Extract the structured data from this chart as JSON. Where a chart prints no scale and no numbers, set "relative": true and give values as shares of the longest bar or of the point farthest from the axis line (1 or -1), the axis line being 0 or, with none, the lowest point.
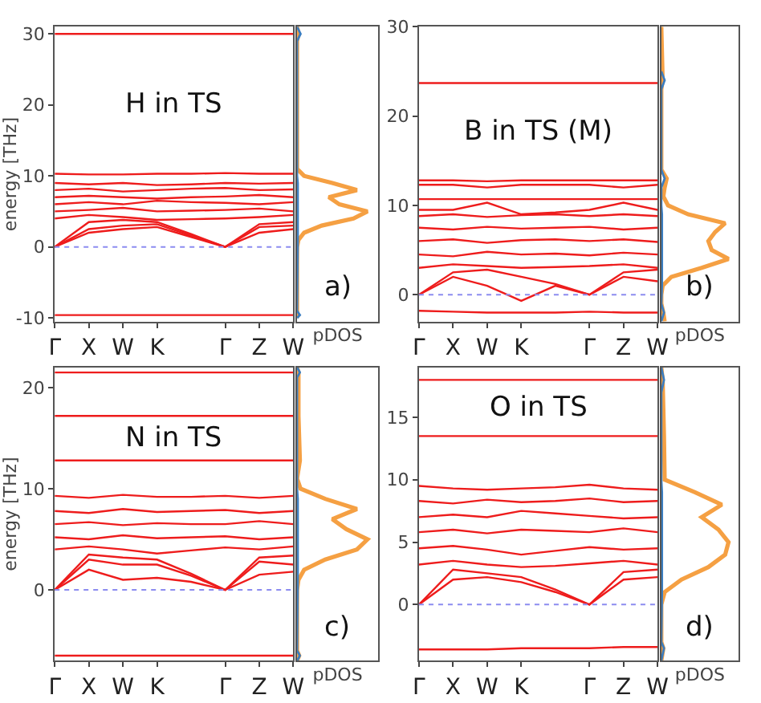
{
  "chart_data": [
    {
      "type": "line",
      "categories": [
        "Γ",
        "X",
        "W",
        "K",
        null,
        "Γ",
        "Z",
        "W"
      ],
      "ylim": [
        -10.5,
        31
      ],
      "yticks": [
        -10,
        0,
        10,
        20,
        30
      ],
      "ylabel": "energy [THz]",
      "annotations": [
        "H in TS"
      ],
      "ref_lines": [
        {
          "axis": "y",
          "value": 0,
          "color": "#8c8cf0",
          "line_style": "dotted"
        }
      ],
      "series": [
        {
          "color": "#ee1c1c",
          "values": [
            30,
            30,
            30,
            30,
            30,
            30,
            30,
            30
          ]
        },
        {
          "color": "#ee1c1c",
          "values": [
            10.3,
            10.2,
            10.2,
            10.3,
            10.3,
            10.4,
            10.3,
            10.3
          ]
        },
        {
          "color": "#ee1c1c",
          "values": [
            -9.6,
            -9.6,
            -9.6,
            -9.6,
            -9.6,
            -9.6,
            -9.6,
            -9.6
          ]
        },
        {
          "color": "#ee1c1c",
          "values": [
            0,
            2,
            2.5,
            2.8,
            1.4,
            0,
            2,
            2.5
          ]
        },
        {
          "color": "#ee1c1c",
          "values": [
            0,
            2.5,
            3,
            3.2,
            1.6,
            0,
            2.8,
            3
          ]
        },
        {
          "color": "#ee1c1c",
          "values": [
            0,
            3.5,
            3.8,
            3.5,
            1.8,
            0,
            3.2,
            3.5
          ]
        },
        {
          "color": "#ee1c1c",
          "values": [
            4,
            4.5,
            4.2,
            3.8,
            3.9,
            4,
            4.2,
            4.5
          ]
        },
        {
          "color": "#ee1c1c",
          "values": [
            5,
            5.2,
            5.5,
            5,
            5.1,
            5.2,
            5.4,
            5
          ]
        },
        {
          "color": "#ee1c1c",
          "values": [
            6,
            6.3,
            6,
            6.5,
            6.3,
            6.2,
            6,
            6.3
          ]
        },
        {
          "color": "#ee1c1c",
          "values": [
            7,
            7.2,
            7,
            6.8,
            7,
            7.1,
            7.3,
            7
          ]
        },
        {
          "color": "#ee1c1c",
          "values": [
            8,
            8.2,
            7.8,
            8,
            8.2,
            8.3,
            8,
            8.1
          ]
        },
        {
          "color": "#ee1c1c",
          "values": [
            9,
            8.8,
            9,
            8.7,
            8.8,
            9,
            8.9,
            9
          ]
        }
      ]
    },
    {
      "type": "line",
      "orientation": "horizontal",
      "relative": true,
      "tick_labels": false,
      "ylim": [
        -10.5,
        31
      ],
      "xlabel": "pDOS",
      "annotations": [
        "a)"
      ],
      "series": [
        {
          "color": "#f5a043",
          "x": [
            -10,
            -9,
            0,
            1,
            2,
            3,
            4,
            5,
            6,
            7,
            8,
            9,
            10,
            11,
            29,
            30,
            31
          ],
          "values": [
            0,
            0,
            0,
            0.02,
            0.1,
            0.35,
            0.8,
            1,
            0.6,
            0.45,
            0.85,
            0.5,
            0.1,
            0,
            0,
            0.02,
            0
          ]
        },
        {
          "color": "#3a7dc0",
          "x": [
            -10,
            -9.6,
            -9,
            1,
            9,
            10,
            29,
            30,
            31
          ],
          "values": [
            0,
            0.04,
            0,
            0.01,
            0.01,
            0,
            0,
            0.05,
            0
          ]
        }
      ]
    },
    {
      "type": "line",
      "categories": [
        "Γ",
        "X",
        "W",
        "K",
        null,
        "Γ",
        "Z",
        "W"
      ],
      "ylim": [
        -3,
        30
      ],
      "yticks": [
        0,
        10,
        20,
        30
      ],
      "annotations": [
        "B in TS (M)"
      ],
      "ref_lines": [
        {
          "axis": "y",
          "value": 0,
          "color": "#8c8cf0",
          "line_style": "dotted"
        }
      ],
      "series": [
        {
          "color": "#ee1c1c",
          "values": [
            23.7,
            23.7,
            23.7,
            23.7,
            23.7,
            23.7,
            23.7,
            23.7
          ]
        },
        {
          "color": "#ee1c1c",
          "values": [
            12.8,
            12.8,
            12.7,
            12.8,
            12.8,
            12.8,
            12.8,
            12.8
          ]
        },
        {
          "color": "#ee1c1c",
          "values": [
            12.3,
            12.3,
            12,
            12.3,
            12.3,
            12.3,
            12,
            12.3
          ]
        },
        {
          "color": "#ee1c1c",
          "values": [
            10.7,
            10.7,
            10.7,
            10.7,
            10.7,
            10.7,
            10.7,
            10.7
          ]
        },
        {
          "color": "#ee1c1c",
          "values": [
            -1.8,
            -1.9,
            -2,
            -2,
            -2,
            -1.9,
            -2,
            -2
          ]
        },
        {
          "color": "#ee1c1c",
          "values": [
            0,
            2,
            1,
            -0.7,
            1,
            0,
            2,
            1.5
          ]
        },
        {
          "color": "#ee1c1c",
          "values": [
            0,
            2.5,
            2.8,
            2,
            1.2,
            0,
            2.5,
            2.8
          ]
        },
        {
          "color": "#ee1c1c",
          "values": [
            9.5,
            9.5,
            10.3,
            9,
            9.2,
            9.5,
            10.3,
            9.5
          ]
        },
        {
          "color": "#ee1c1c",
          "values": [
            3,
            3.4,
            3.2,
            3,
            3.1,
            3.2,
            3.4,
            3
          ]
        },
        {
          "color": "#ee1c1c",
          "values": [
            4.5,
            4.3,
            4.8,
            4.5,
            4.6,
            4.4,
            4.7,
            4.5
          ]
        },
        {
          "color": "#ee1c1c",
          "values": [
            6,
            6.2,
            5.8,
            6.1,
            6.2,
            6,
            6.2,
            5.9
          ]
        },
        {
          "color": "#ee1c1c",
          "values": [
            7.5,
            7.3,
            7.6,
            7.4,
            7.5,
            7.6,
            7.3,
            7.5
          ]
        },
        {
          "color": "#ee1c1c",
          "values": [
            8.8,
            9,
            8.7,
            8.9,
            9,
            8.8,
            9,
            8.8
          ]
        }
      ]
    },
    {
      "type": "line",
      "orientation": "horizontal",
      "relative": true,
      "tick_labels": false,
      "ylim": [
        -3,
        30
      ],
      "xlabel": "pDOS",
      "annotations": [
        "b)"
      ],
      "series": [
        {
          "color": "#f5a043",
          "x": [
            -3,
            -2,
            -1,
            0,
            1,
            2,
            3,
            4,
            5,
            6,
            7,
            8,
            9,
            10,
            11,
            12,
            13,
            14,
            23,
            24,
            30
          ],
          "values": [
            0.05,
            0.03,
            0,
            0,
            0.02,
            0.15,
            0.6,
            1,
            0.75,
            0.7,
            0.8,
            0.95,
            0.4,
            0.1,
            0.03,
            0.05,
            0.08,
            0,
            0,
            0.02,
            0
          ]
        },
        {
          "color": "#3a7dc0",
          "x": [
            -3,
            -2,
            -1,
            1,
            9,
            10,
            12,
            13,
            14,
            23,
            24,
            25
          ],
          "values": [
            0,
            0.04,
            0,
            0.01,
            0.01,
            0,
            0,
            0.05,
            0,
            0,
            0.05,
            0
          ]
        }
      ]
    },
    {
      "type": "line",
      "categories": [
        "Γ",
        "X",
        "W",
        "K",
        null,
        "Γ",
        "Z",
        "W"
      ],
      "ylim": [
        -7,
        22
      ],
      "yticks": [
        0,
        10,
        20
      ],
      "ylabel": "energy [THz]",
      "annotations": [
        "N in TS"
      ],
      "ref_lines": [
        {
          "axis": "y",
          "value": 0,
          "color": "#8c8cf0",
          "line_style": "dotted"
        }
      ],
      "series": [
        {
          "color": "#ee1c1c",
          "values": [
            21.5,
            21.5,
            21.5,
            21.5,
            21.5,
            21.5,
            21.5,
            21.5
          ]
        },
        {
          "color": "#ee1c1c",
          "values": [
            17.2,
            17.2,
            17.2,
            17.2,
            17.2,
            17.2,
            17.2,
            17.2
          ]
        },
        {
          "color": "#ee1c1c",
          "values": [
            12.8,
            12.8,
            12.8,
            12.8,
            12.8,
            12.8,
            12.8,
            12.8
          ]
        },
        {
          "color": "#ee1c1c",
          "values": [
            -6.5,
            -6.5,
            -6.5,
            -6.5,
            -6.5,
            -6.5,
            -6.5,
            -6.5
          ]
        },
        {
          "color": "#ee1c1c",
          "values": [
            0,
            2,
            1,
            1.2,
            0.8,
            0,
            1.5,
            1.8
          ]
        },
        {
          "color": "#ee1c1c",
          "values": [
            0,
            3,
            2.5,
            2.5,
            1.4,
            0,
            2.8,
            2.5
          ]
        },
        {
          "color": "#ee1c1c",
          "values": [
            0,
            3.5,
            3.2,
            3,
            1.6,
            0,
            3.2,
            3.4
          ]
        },
        {
          "color": "#ee1c1c",
          "values": [
            4,
            4.3,
            4,
            3.6,
            3.9,
            4.2,
            4,
            4.3
          ]
        },
        {
          "color": "#ee1c1c",
          "values": [
            5.2,
            5,
            5.4,
            5.1,
            5.2,
            5.3,
            5,
            5.2
          ]
        },
        {
          "color": "#ee1c1c",
          "values": [
            6.5,
            6.7,
            6.4,
            6.6,
            6.5,
            6.5,
            6.8,
            6.5
          ]
        },
        {
          "color": "#ee1c1c",
          "values": [
            7.8,
            7.6,
            8,
            7.7,
            7.8,
            7.9,
            7.6,
            7.8
          ]
        },
        {
          "color": "#ee1c1c",
          "values": [
            9.3,
            9.1,
            9.4,
            9.2,
            9.2,
            9.3,
            9.1,
            9.3
          ]
        }
      ]
    },
    {
      "type": "line",
      "orientation": "horizontal",
      "relative": true,
      "tick_labels": false,
      "ylim": [
        -7,
        22
      ],
      "xlabel": "pDOS",
      "annotations": [
        "c)"
      ],
      "series": [
        {
          "color": "#f5a043",
          "x": [
            -7,
            -6.5,
            -6,
            0,
            1,
            2,
            3,
            4,
            5,
            6,
            7,
            8,
            9,
            10,
            11,
            12.8,
            17.2,
            21.5,
            22
          ],
          "values": [
            0,
            0.03,
            0,
            0,
            0.02,
            0.1,
            0.4,
            0.85,
            1,
            0.7,
            0.5,
            0.85,
            0.4,
            0.05,
            0,
            0.04,
            0.02,
            0.02,
            0
          ]
        },
        {
          "color": "#3a7dc0",
          "x": [
            -7,
            -6.5,
            -6,
            1,
            9,
            10,
            21,
            21.5,
            22
          ],
          "values": [
            0,
            0.04,
            0,
            0.01,
            0.01,
            0,
            0,
            0.04,
            0
          ]
        }
      ]
    },
    {
      "type": "line",
      "categories": [
        "Γ",
        "X",
        "W",
        "K",
        null,
        "Γ",
        "Z",
        "W"
      ],
      "ylim": [
        -4.5,
        19
      ],
      "yticks": [
        0,
        5,
        10,
        15
      ],
      "annotations": [
        "O in TS"
      ],
      "ref_lines": [
        {
          "axis": "y",
          "value": 0,
          "color": "#8c8cf0",
          "line_style": "dotted"
        }
      ],
      "series": [
        {
          "color": "#ee1c1c",
          "values": [
            18,
            18,
            18,
            18,
            18,
            18,
            18,
            18
          ]
        },
        {
          "color": "#ee1c1c",
          "values": [
            13.5,
            13.5,
            13.5,
            13.5,
            13.5,
            13.5,
            13.5,
            13.5
          ]
        },
        {
          "color": "#ee1c1c",
          "values": [
            -3.6,
            -3.6,
            -3.6,
            -3.5,
            -3.5,
            -3.5,
            -3.4,
            -3.4
          ]
        },
        {
          "color": "#ee1c1c",
          "values": [
            0,
            2,
            2.2,
            1.8,
            1,
            0,
            2,
            2.2
          ]
        },
        {
          "color": "#ee1c1c",
          "values": [
            0,
            2.8,
            2.5,
            2.2,
            1.2,
            0,
            2.6,
            2.8
          ]
        },
        {
          "color": "#ee1c1c",
          "values": [
            3.2,
            3.5,
            3.2,
            3,
            3.1,
            3.3,
            3.5,
            3.2
          ]
        },
        {
          "color": "#ee1c1c",
          "values": [
            4.5,
            4.7,
            4.4,
            4,
            4.3,
            4.6,
            4.4,
            4.5
          ]
        },
        {
          "color": "#ee1c1c",
          "values": [
            5.8,
            6,
            5.7,
            6,
            5.9,
            5.8,
            6.1,
            5.8
          ]
        },
        {
          "color": "#ee1c1c",
          "values": [
            7,
            7.2,
            7,
            7.5,
            7.3,
            7.1,
            6.9,
            7
          ]
        },
        {
          "color": "#ee1c1c",
          "values": [
            8.3,
            8.1,
            8.4,
            8.2,
            8.3,
            8.5,
            8.2,
            8.3
          ]
        },
        {
          "color": "#ee1c1c",
          "values": [
            9.5,
            9.3,
            9.2,
            9.3,
            9.4,
            9.6,
            9.3,
            9.2
          ]
        }
      ]
    },
    {
      "type": "line",
      "orientation": "horizontal",
      "relative": true,
      "tick_labels": false,
      "ylim": [
        -4.5,
        19
      ],
      "xlabel": "pDOS",
      "annotations": [
        "d)"
      ],
      "series": [
        {
          "color": "#f5a043",
          "x": [
            -4.5,
            -3.5,
            -3,
            0,
            1,
            2,
            3,
            4,
            5,
            6,
            7,
            8,
            9,
            10,
            13.5,
            18,
            19
          ],
          "values": [
            0,
            0.03,
            0,
            0,
            0.05,
            0.3,
            0.7,
            0.95,
            1,
            0.85,
            0.6,
            0.9,
            0.5,
            0.05,
            0.04,
            0.02,
            0
          ]
        },
        {
          "color": "#3a7dc0",
          "x": [
            -4.5,
            -3.5,
            -3,
            1,
            9,
            10,
            17,
            18,
            19
          ],
          "values": [
            0,
            0.04,
            0,
            0.01,
            0.01,
            0,
            0,
            0.04,
            0
          ]
        }
      ]
    }
  ]
}
